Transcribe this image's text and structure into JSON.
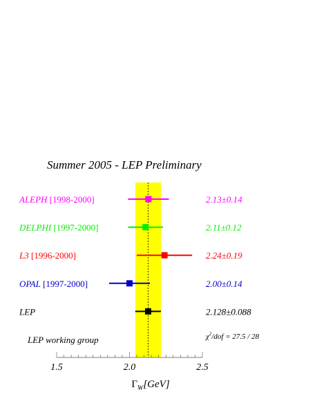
{
  "chart_data": {
    "type": "scatter",
    "title": "Summer 2005 - LEP Preliminary",
    "xlabel": "Γ",
    "xlabel_sub": "W",
    "xlabel_unit": "[GeV]",
    "xlim": [
      1.5,
      2.5
    ],
    "x_ticks": [
      1.5,
      2.0,
      2.5
    ],
    "x_tick_labels": [
      "1.5",
      "2.0",
      "2.5"
    ],
    "average": {
      "value": 2.128,
      "error": 0.088,
      "band_color": "#ffff00",
      "line_style": "dashed"
    },
    "measurements": [
      {
        "label": "ALEPH",
        "years": "[1998-2000]",
        "value": 2.13,
        "error": 0.14,
        "result_text": "2.13±0.14",
        "color": "#ff00ff"
      },
      {
        "label": "DELPHI",
        "years": "[1997-2000]",
        "value": 2.11,
        "error": 0.12,
        "result_text": "2.11±0.12",
        "color": "#00ee00"
      },
      {
        "label": "L3",
        "years": "[1996-2000]",
        "value": 2.24,
        "error": 0.19,
        "result_text": "2.24±0.19",
        "color": "#ff0000"
      },
      {
        "label": "OPAL",
        "years": "[1997-2000]",
        "value": 2.0,
        "error": 0.14,
        "result_text": "2.00±0.14",
        "color": "#0000cc"
      },
      {
        "label": "LEP",
        "years": "",
        "value": 2.128,
        "error": 0.088,
        "result_text": "2.128±0.088",
        "color": "#000000"
      }
    ],
    "chi2": {
      "prefix": "χ",
      "sup": "2",
      "rest": "/dof = 27.5 / 28"
    },
    "footer": "LEP working group"
  }
}
